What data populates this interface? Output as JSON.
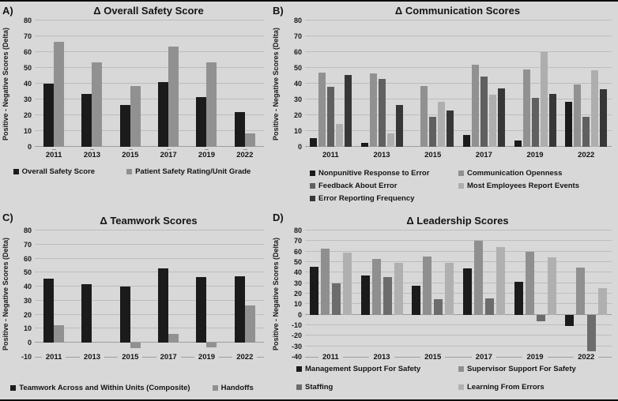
{
  "figure": {
    "background": "#d8d8d8",
    "border_color": "#0d0d0d",
    "gridline_color": "#bcbcbc",
    "axis_color": "#9d9d9d"
  },
  "chart_data": [
    {
      "panel": "A)",
      "type": "bar",
      "title": "Δ Overall Safety Score",
      "ylabel": "Positive - Negative Scores (Delta)",
      "xlabel": "",
      "ylim": [
        0,
        80
      ],
      "ytick_step": 10,
      "grid": true,
      "legend_position": "bottom",
      "categories": [
        "2011",
        "2013",
        "2015",
        "2017",
        "2019",
        "2022"
      ],
      "series": [
        {
          "name": "Overall Safety Score",
          "color": "#1b1b1b",
          "values": [
            40,
            33.5,
            26.5,
            41,
            31.5,
            22
          ]
        },
        {
          "name": "Patient Safety Rating/Unit Grade",
          "color": "#919191",
          "values": [
            66.5,
            53.5,
            38.5,
            63.5,
            53.5,
            8.5
          ]
        }
      ]
    },
    {
      "panel": "B)",
      "type": "bar",
      "title": "Δ Communication Scores",
      "ylabel": "Positive - Negative Scores (Delta)",
      "xlabel": "",
      "ylim": [
        0,
        80
      ],
      "ytick_step": 10,
      "grid": true,
      "legend_position": "bottom",
      "categories": [
        "2011",
        "2013",
        "2015",
        "2017",
        "2019",
        "2022"
      ],
      "series": [
        {
          "name": "Nonpunitive Response to Error",
          "color": "#1b1b1b",
          "values": [
            5.5,
            2.5,
            null,
            7.5,
            4,
            28.5
          ]
        },
        {
          "name": "Communication Openness",
          "color": "#919191",
          "values": [
            47,
            46.5,
            38.5,
            52,
            49,
            39.5
          ]
        },
        {
          "name": "Feedback About Error",
          "color": "#606060",
          "values": [
            38,
            43,
            19,
            44.5,
            31,
            19
          ]
        },
        {
          "name": "Most Employees Report Events",
          "color": "#aeaeae",
          "values": [
            14.5,
            8.5,
            28.5,
            33,
            60,
            48.5
          ]
        },
        {
          "name": "Error Reporting Frequency",
          "color": "#373737",
          "values": [
            45.5,
            26.5,
            23,
            37,
            33.5,
            36.5
          ]
        }
      ]
    },
    {
      "panel": "C)",
      "type": "bar",
      "title": "Δ Teamwork Scores",
      "ylabel": "Positive - Negative Scores (Delta)",
      "xlabel": "",
      "ylim": [
        -10,
        80
      ],
      "ytick_step": 10,
      "grid": true,
      "legend_position": "bottom",
      "categories": [
        "2011",
        "2013",
        "2015",
        "2017",
        "2019",
        "2022"
      ],
      "series": [
        {
          "name": "Teamwork Across and Within Units (Composite)",
          "color": "#1b1b1b",
          "values": [
            45.5,
            41.5,
            40,
            53,
            47,
            47.5
          ]
        },
        {
          "name": "Handoffs",
          "color": "#919191",
          "values": [
            12.5,
            null,
            -4,
            6.5,
            -3.5,
            26.5
          ]
        }
      ]
    },
    {
      "panel": "D)",
      "type": "bar",
      "title": "Δ Leadership Scores",
      "ylabel": "Positive - Negative Scores (Delta)",
      "xlabel": "",
      "ylim": [
        -40,
        80
      ],
      "ytick_step": 10,
      "grid": true,
      "legend_position": "bottom",
      "categories": [
        "2011",
        "2013",
        "2015",
        "2017",
        "2019",
        "2022"
      ],
      "series": [
        {
          "name": "Management Support For Safety",
          "color": "#1b1b1b",
          "values": [
            45.5,
            37.5,
            27.5,
            44,
            31,
            -10.5
          ]
        },
        {
          "name": "Supervisor Support For Safety",
          "color": "#8f8f8f",
          "values": [
            62.5,
            53,
            55,
            70.5,
            60,
            45
          ]
        },
        {
          "name": "Staffing",
          "color": "#6c6c6c",
          "values": [
            30,
            36,
            14.5,
            15.5,
            -6,
            -35
          ]
        },
        {
          "name": "Learning From Errors",
          "color": "#b0b0b0",
          "values": [
            59,
            49,
            49,
            64,
            54.5,
            25
          ]
        }
      ]
    }
  ]
}
